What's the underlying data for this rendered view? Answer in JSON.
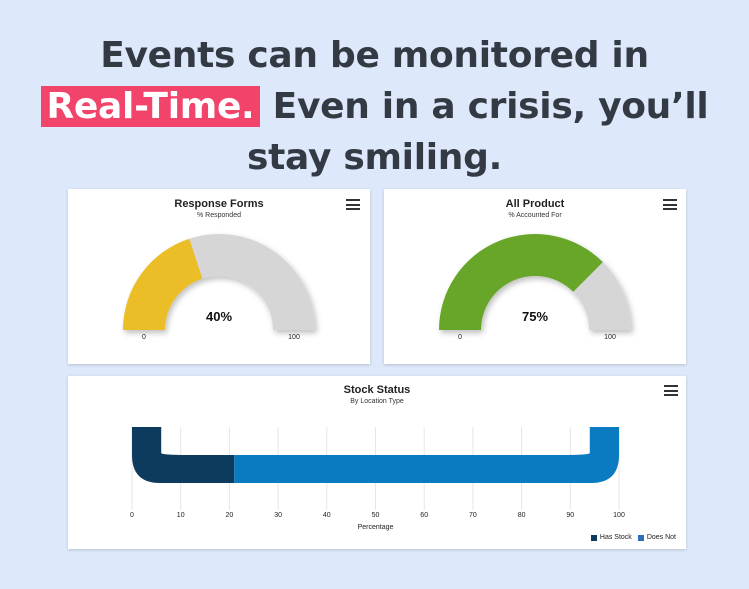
{
  "headline": {
    "line1": "Events can be monitored in",
    "highlight": "Real-Time.",
    "line2_rest": " Even in a crisis, you’ll",
    "line3": "stay smiling."
  },
  "icons": {
    "menu": "hamburger-menu-icon"
  },
  "colors": {
    "background": "#dde9fb",
    "highlight": "#f2446b",
    "gauge_track": "#d6d6d6",
    "response_fill": "#ebbd25",
    "product_fill": "#68a62c",
    "has_stock": "#0d3b5e",
    "does_not": "#0a7ac1"
  },
  "chart_data": [
    {
      "type": "gauge",
      "title": "Response Forms",
      "subtitle": "% Responded",
      "value": 40,
      "value_label": "40%",
      "min": 0,
      "max": 100,
      "min_label": "0",
      "max_label": "100"
    },
    {
      "type": "gauge",
      "title": "All Product",
      "subtitle": "% Accounted For",
      "value": 75,
      "value_label": "75%",
      "min": 0,
      "max": 100,
      "min_label": "0",
      "max_label": "100"
    },
    {
      "type": "bar",
      "orientation": "horizontal",
      "stacked": true,
      "title": "Stock Status",
      "subtitle": "By Location Type",
      "xlabel": "Percentage",
      "xlim": [
        0,
        100
      ],
      "xticks": [
        "0",
        "10",
        "20",
        "30",
        "40",
        "50",
        "60",
        "70",
        "80",
        "90",
        "100"
      ],
      "grid": true,
      "legend_position": "bottom-right",
      "series": [
        {
          "name": "Has Stock",
          "values": [
            21
          ]
        },
        {
          "name": "Does Not",
          "values": [
            79
          ]
        }
      ]
    }
  ]
}
